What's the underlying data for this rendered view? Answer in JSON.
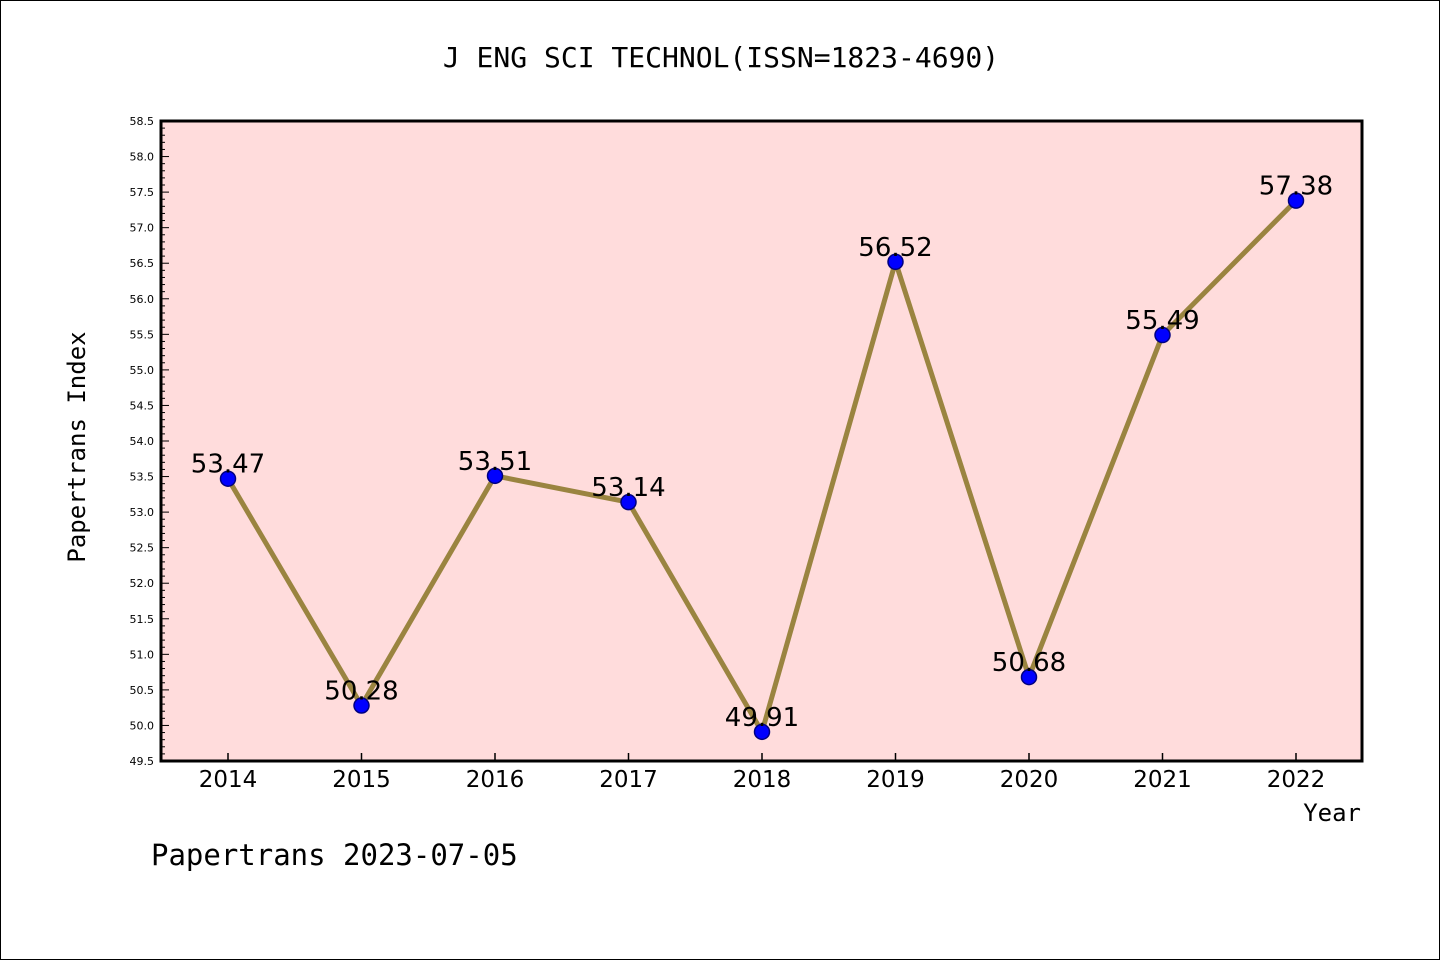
{
  "chart_data": {
    "type": "line",
    "title": "J ENG SCI TECHNOL(ISSN=1823-4690)",
    "xlabel": "Year",
    "ylabel": "Papertrans Index",
    "x": [
      "2014",
      "2015",
      "2016",
      "2017",
      "2018",
      "2019",
      "2020",
      "2021",
      "2022"
    ],
    "values": [
      53.47,
      50.28,
      53.51,
      53.14,
      49.91,
      56.52,
      50.68,
      55.49,
      57.38
    ],
    "data_labels": [
      "53.47",
      "50.28",
      "53.51",
      "53.14",
      "49.91",
      "56.52",
      "50.68",
      "55.49",
      "57.38"
    ],
    "ylim": [
      49.5,
      58.5
    ],
    "yticks": [
      "49.5",
      "50.0",
      "50.5",
      "51.0",
      "51.5",
      "52.0",
      "52.5",
      "53.0",
      "53.5",
      "54.0",
      "54.5",
      "55.0",
      "55.5",
      "56.0",
      "56.5",
      "57.0",
      "57.5",
      "58.0",
      "58.5"
    ],
    "grid": false,
    "footer": "Papertrans 2023-07-05",
    "colors": {
      "plot_background": "#ffdcdc",
      "line": "#9a8440",
      "marker": "#0000ff",
      "marker_edge": "#000080",
      "axis": "#000000"
    }
  }
}
